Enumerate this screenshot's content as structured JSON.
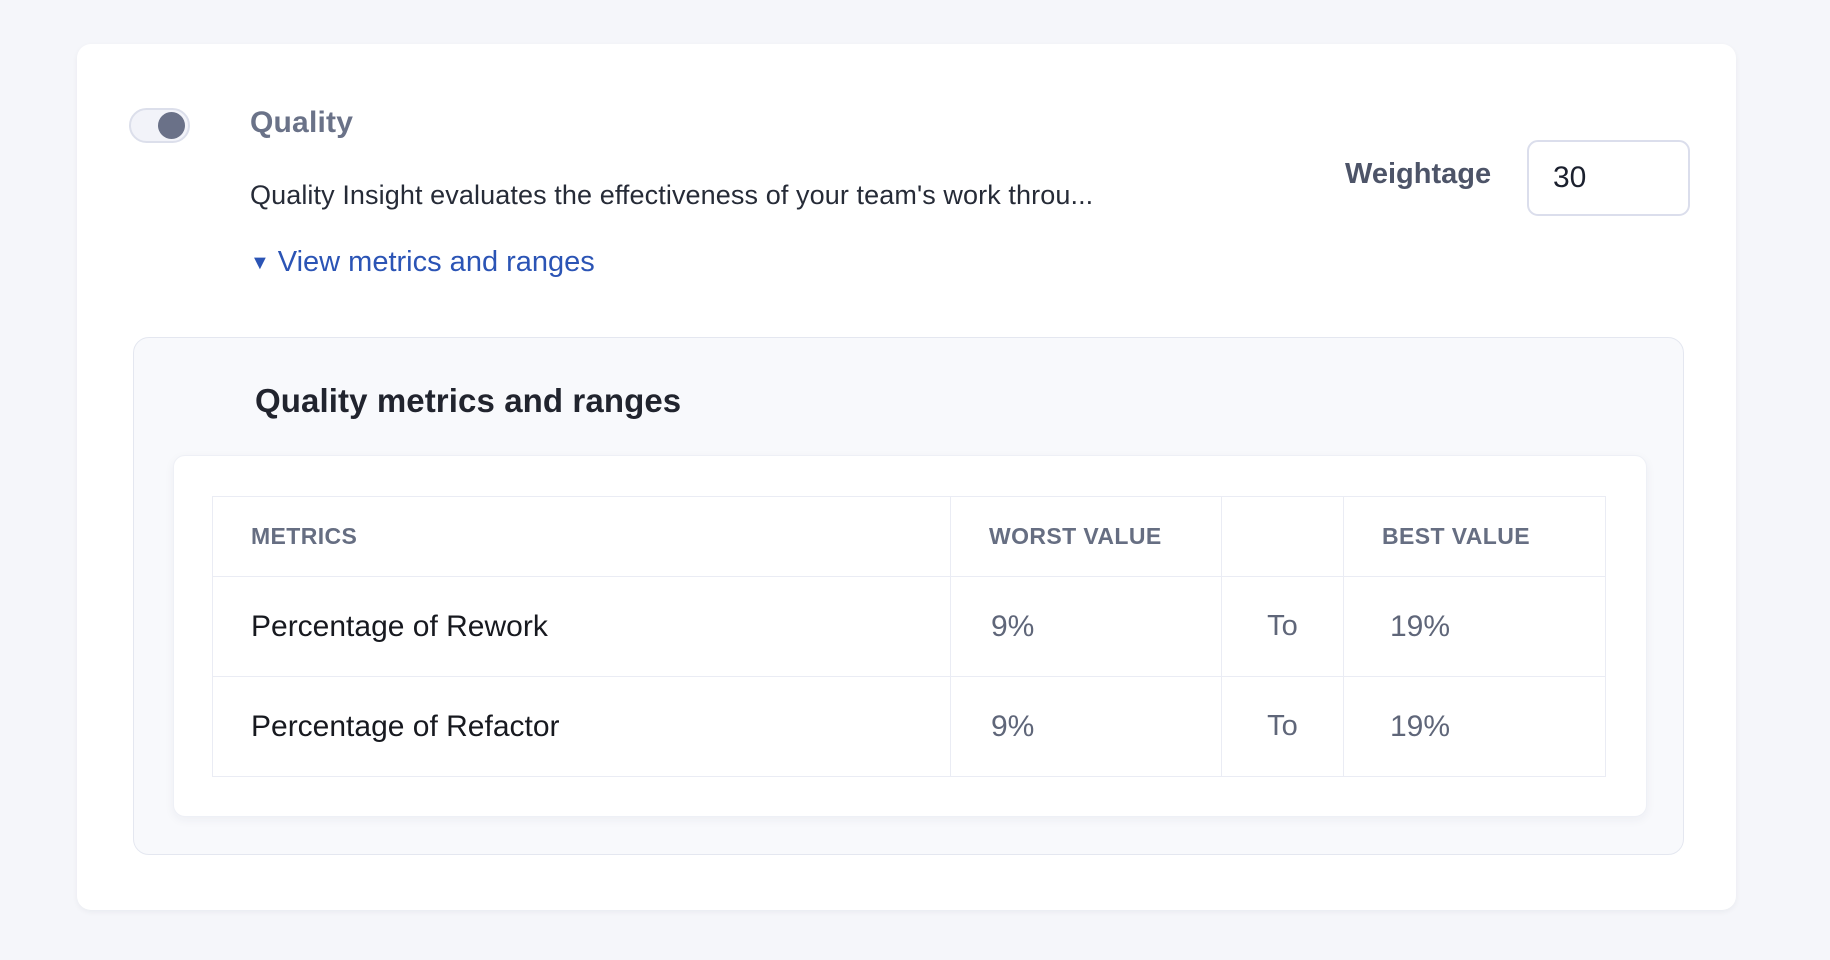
{
  "card": {
    "toggle": {
      "state": "on",
      "knob_color": "#6a7188",
      "track_color": "#f2f3f9"
    },
    "title": "Quality",
    "description": "Quality Insight evaluates the effectiveness of your team's work throu...",
    "weightage": {
      "label": "Weightage",
      "value": "30"
    },
    "metrics_link": {
      "icon": "triangle-down",
      "icon_glyph": "▼",
      "label": "View metrics and ranges"
    },
    "panel": {
      "title": "Quality metrics and ranges",
      "table": {
        "headers": {
          "metrics": "METRICS",
          "worst": "WORST VALUE",
          "separator": "",
          "best": "BEST VALUE"
        },
        "rows": [
          {
            "metric": "Percentage of Rework",
            "worst": "9%",
            "separator": "To",
            "best": "19%"
          },
          {
            "metric": "Percentage of Refactor",
            "worst": "9%",
            "separator": "To",
            "best": "19%"
          }
        ]
      }
    }
  },
  "colors": {
    "page_background": "#f5f6fa",
    "card_background": "#ffffff",
    "panel_background": "#f8f9fc",
    "link_blue": "#2b54b5",
    "heading_gray": "#6a7288",
    "value_gray": "#5f6679",
    "dark_text": "#21242e",
    "table_border": "#eaecf4",
    "input_border": "#dbdeec"
  }
}
